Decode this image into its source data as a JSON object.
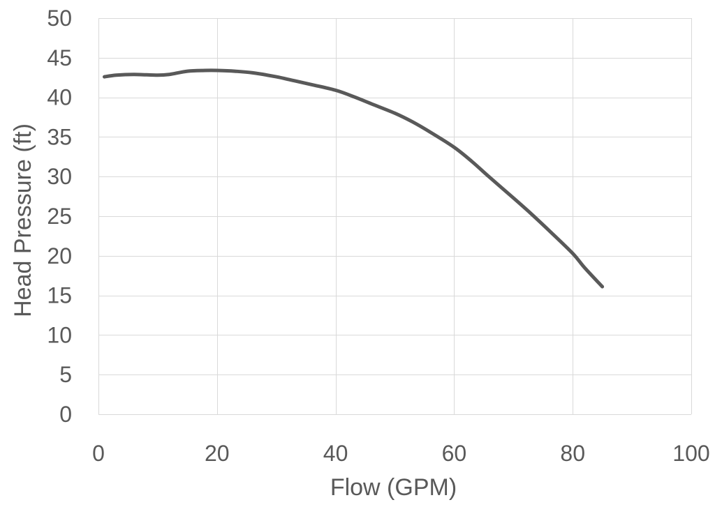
{
  "chart_data": {
    "type": "line",
    "title": "",
    "xlabel": "Flow (GPM)",
    "ylabel": "Head Pressure (ft)",
    "xlim": [
      0,
      100
    ],
    "ylim": [
      0,
      50
    ],
    "x_ticks": [
      0,
      20,
      40,
      60,
      80,
      100
    ],
    "y_ticks": [
      0,
      5,
      10,
      15,
      20,
      25,
      30,
      35,
      40,
      45,
      50
    ],
    "grid": true,
    "legend": "none",
    "colors": {
      "line": "#595959",
      "grid": "#d9d9d9",
      "text": "#595959"
    },
    "series": [
      {
        "x": [
          1,
          3,
          6,
          10,
          12,
          15,
          18,
          20,
          23,
          26,
          30,
          33,
          36,
          40,
          43,
          46,
          50,
          53,
          56,
          60,
          63,
          66,
          70,
          73,
          76,
          80,
          82,
          85
        ],
        "y": [
          42.6,
          42.8,
          42.9,
          42.8,
          42.9,
          43.3,
          43.4,
          43.4,
          43.3,
          43.1,
          42.6,
          42.1,
          41.6,
          40.9,
          40.1,
          39.2,
          38.0,
          36.9,
          35.6,
          33.7,
          31.9,
          29.9,
          27.3,
          25.3,
          23.2,
          20.3,
          18.5,
          16.1
        ]
      }
    ]
  }
}
